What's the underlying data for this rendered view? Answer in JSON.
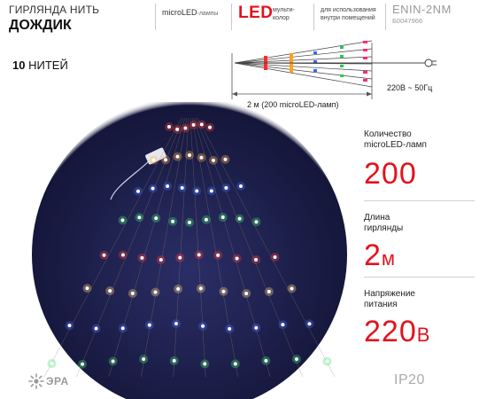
{
  "header": {
    "title_line1": "ГИРЛЯНДА НИТЬ",
    "title_line2": "ДОЖДИК",
    "lamp_type": "microLED",
    "lamp_type_suffix": "-лампы",
    "led": "LED",
    "multicolor_line1": "мульти-",
    "multicolor_line2": "колор",
    "indoor_line1": "для использования",
    "indoor_line2": "внутри помещений",
    "model": "ENIN-2NM",
    "code": "Б0047966"
  },
  "threads": {
    "count": "10",
    "label": "НИТЕЙ"
  },
  "diagram": {
    "voltage_label": "220В ~ 50Гц",
    "length_label": "2 м (200 microLED-ламп)"
  },
  "specs": [
    {
      "label_line1": "Количество",
      "label_line2": "microLED-ламп",
      "value": "200",
      "unit": ""
    },
    {
      "label_line1": "Длина",
      "label_line2": "гирлянды",
      "value": "2",
      "unit": "м"
    },
    {
      "label_line1": "Напряжение",
      "label_line2": "питания",
      "value": "220",
      "unit": "В"
    }
  ],
  "logo": {
    "text": "ЭРА"
  },
  "ip_rating": "IP20",
  "colors": {
    "accent_red": "#e3121d",
    "photo_background": "#1b1d44",
    "led_colors": [
      "#ff3b30",
      "#ffb347",
      "#3b6bff",
      "#39e06a",
      "#ff3b3b",
      "#ffd27a",
      "#4c6bff",
      "#44e070",
      "#ffa040"
    ]
  }
}
